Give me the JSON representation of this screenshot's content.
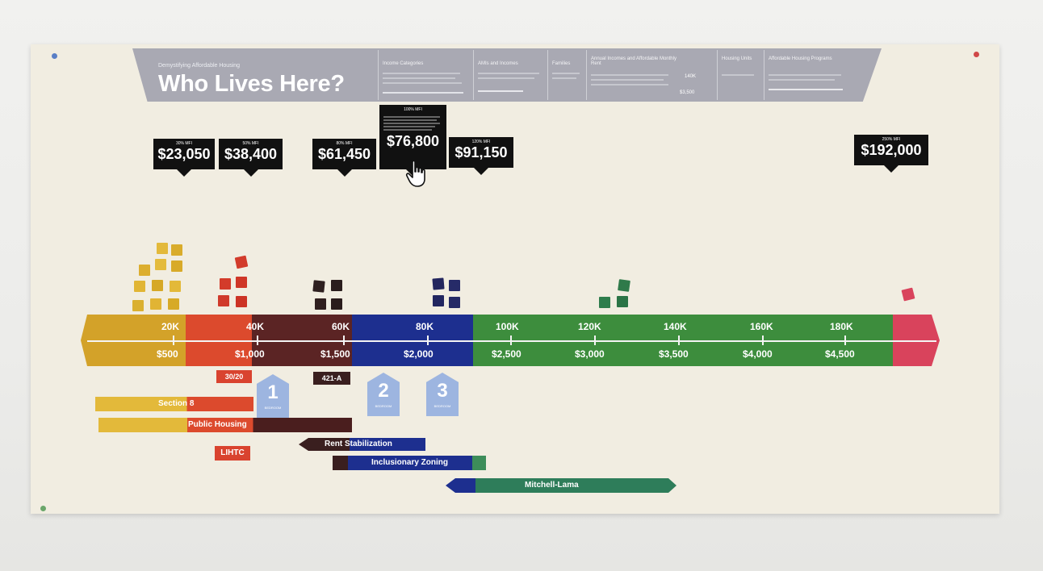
{
  "header": {
    "subtitle": "Demystifying Affordable Housing",
    "title": "Who Lives Here?",
    "sections": [
      "Income Categories",
      "AMIs and Incomes",
      "Families",
      "Annual Incomes and Affordable Monthly Rent",
      "Housing Units",
      "Affordable Housing Programs"
    ],
    "rent_note": "140K",
    "rent_value": "$3,500"
  },
  "mfi_markers": [
    {
      "label": "30% MFI",
      "amount": "$23,050"
    },
    {
      "label": "50% MFI",
      "amount": "$38,400"
    },
    {
      "label": "80% MFI",
      "amount": "$61,450"
    },
    {
      "label": "100% MFI",
      "amount": "$76,800"
    },
    {
      "label": "120% MFI",
      "amount": "$91,150"
    },
    {
      "label": "250% MFI",
      "amount": "$192,000"
    }
  ],
  "income_axis": {
    "income_ticks": [
      "20K",
      "40K",
      "60K",
      "80K",
      "100K",
      "120K",
      "140K",
      "160K",
      "180K"
    ],
    "rent_ticks": [
      "$500",
      "$1,000",
      "$1,500",
      "$2,000",
      "$2,500",
      "$3,000",
      "$3,500",
      "$4,000",
      "$4,500"
    ]
  },
  "band_colors": {
    "extremely_low": "#d3a229",
    "very_low": "#dc4a2d",
    "low": "#5b2424",
    "moderate": "#1d2f8f",
    "middle": "#3d8d3d",
    "high": "#d9435c"
  },
  "tags": {
    "t1": "30/20",
    "t2": "421-A"
  },
  "houses": [
    {
      "number": "1",
      "caption": "BEDROOM"
    },
    {
      "number": "2",
      "caption": "BEDROOM"
    },
    {
      "number": "3",
      "caption": "BEDROOM"
    }
  ],
  "programs": {
    "section8": "Section 8",
    "public_housing": "Public Housing",
    "lihtc": "LIHTC",
    "rent_stabilization": "Rent Stabilization",
    "inclusionary_zoning": "Inclusionary Zoning",
    "mitchell_lama": "Mitchell-Lama"
  }
}
